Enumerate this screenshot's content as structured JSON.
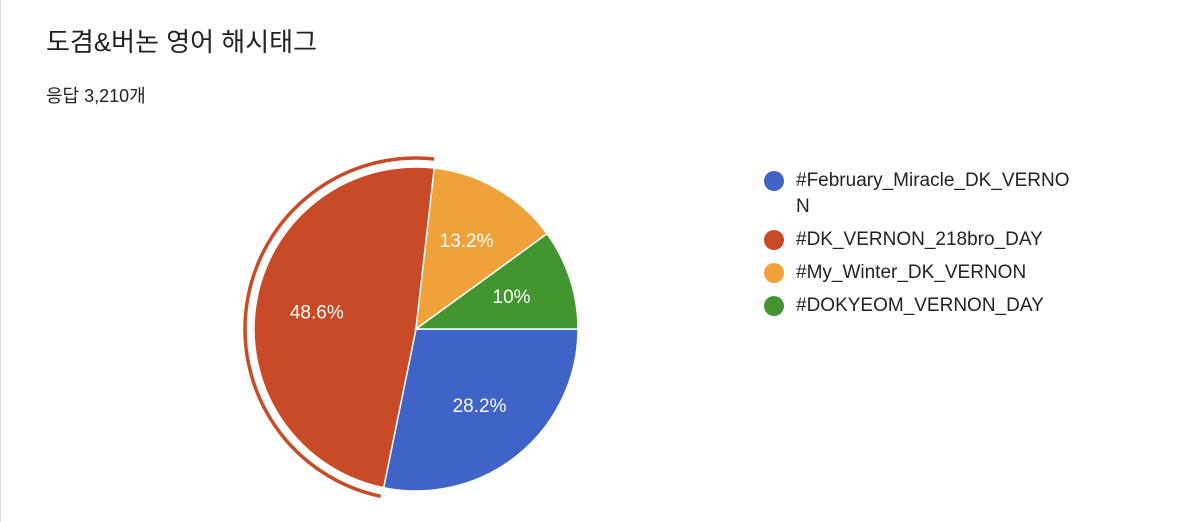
{
  "chart_data": {
    "type": "pie",
    "title": "도겸&버논 영어 해시태그",
    "subtitle": "응답 3,210개",
    "categories": [
      "#February_Miracle_DK_VERNON",
      "#DK_VERNON_218bro_DAY",
      "#My_Winter_DK_VERNON",
      "#DOKYEOM_VERNON_DAY"
    ],
    "values": [
      28.2,
      48.6,
      13.2,
      10
    ],
    "value_labels": [
      "28.2%",
      "48.6%",
      "13.2%",
      "10%"
    ],
    "colors": [
      "#3f63c7",
      "#c94a27",
      "#f0a23a",
      "#42952f"
    ],
    "legend": "right"
  }
}
